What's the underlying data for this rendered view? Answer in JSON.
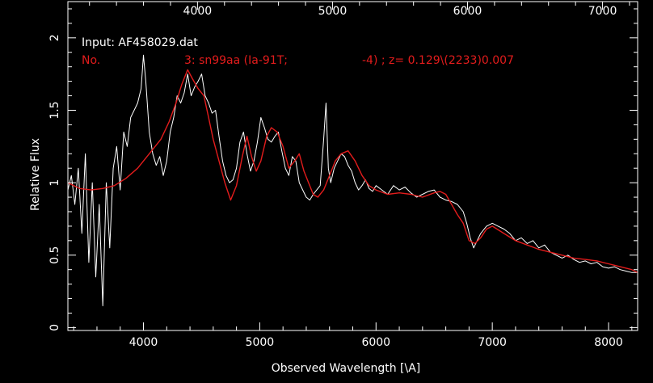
{
  "chart_data": {
    "type": "line",
    "title": "",
    "xlabel": "Observed Wavelength [\\A]",
    "ylabel": "Relative Flux",
    "xlim": [
      3350,
      8250
    ],
    "ylim": [
      -0.02,
      2.25
    ],
    "x_ticks": [
      4000,
      5000,
      6000,
      7000,
      8000
    ],
    "y_ticks": [
      0,
      0.5,
      1,
      1.5,
      2
    ],
    "y_tick_labels": [
      "0",
      "0.5",
      "1",
      "1.5",
      "2"
    ],
    "top_axis": {
      "xlim": [
        3040,
        7260
      ],
      "ticks": [
        4000,
        5000,
        6000,
        7000
      ]
    },
    "annotations": {
      "input": "Input: AF458029.dat",
      "no_label": "No.",
      "template": "3: sn99aa (Ia-91T;",
      "age_z": "-4) ; z= 0.129\\(2233)0.007"
    },
    "colors": {
      "background": "#000000",
      "data": "#ffffff",
      "template": "#e21c1c"
    },
    "series": [
      {
        "color": "#ffffff",
        "x": [
          3350,
          3380,
          3410,
          3440,
          3470,
          3500,
          3530,
          3560,
          3590,
          3620,
          3650,
          3680,
          3710,
          3740,
          3770,
          3800,
          3830,
          3860,
          3890,
          3920,
          3950,
          3980,
          4000,
          4020,
          4050,
          4080,
          4110,
          4140,
          4170,
          4200,
          4230,
          4260,
          4290,
          4320,
          4350,
          4380,
          4410,
          4440,
          4470,
          4500,
          4530,
          4560,
          4590,
          4620,
          4650,
          4680,
          4710,
          4740,
          4770,
          4800,
          4830,
          4860,
          4890,
          4920,
          4950,
          4980,
          5010,
          5040,
          5070,
          5100,
          5130,
          5160,
          5190,
          5220,
          5250,
          5280,
          5310,
          5340,
          5370,
          5400,
          5430,
          5460,
          5490,
          5520,
          5550,
          5570,
          5590,
          5610,
          5640,
          5670,
          5700,
          5730,
          5760,
          5790,
          5820,
          5850,
          5880,
          5910,
          5940,
          5970,
          6000,
          6050,
          6100,
          6150,
          6200,
          6250,
          6300,
          6350,
          6400,
          6450,
          6500,
          6550,
          6600,
          6650,
          6700,
          6750,
          6780,
          6810,
          6840,
          6870,
          6900,
          6950,
          7000,
          7050,
          7100,
          7150,
          7200,
          7250,
          7300,
          7350,
          7400,
          7450,
          7500,
          7550,
          7600,
          7650,
          7700,
          7750,
          7800,
          7850,
          7900,
          7950,
          8000,
          8050,
          8100,
          8150,
          8200,
          8250
        ],
        "values": [
          0.95,
          1.05,
          0.85,
          1.1,
          0.65,
          1.2,
          0.45,
          1.0,
          0.35,
          0.85,
          0.15,
          1.0,
          0.55,
          1.1,
          1.25,
          0.95,
          1.35,
          1.25,
          1.45,
          1.5,
          1.55,
          1.65,
          1.88,
          1.7,
          1.35,
          1.2,
          1.12,
          1.18,
          1.05,
          1.15,
          1.35,
          1.45,
          1.6,
          1.55,
          1.62,
          1.75,
          1.6,
          1.66,
          1.7,
          1.75,
          1.6,
          1.55,
          1.48,
          1.5,
          1.32,
          1.15,
          1.05,
          1.0,
          1.02,
          1.1,
          1.28,
          1.35,
          1.2,
          1.08,
          1.15,
          1.28,
          1.45,
          1.38,
          1.3,
          1.28,
          1.32,
          1.35,
          1.22,
          1.1,
          1.05,
          1.18,
          1.15,
          1.0,
          0.95,
          0.9,
          0.88,
          0.92,
          0.95,
          0.98,
          1.3,
          1.55,
          1.1,
          1.0,
          1.1,
          1.15,
          1.2,
          1.18,
          1.12,
          1.08,
          1.0,
          0.95,
          0.98,
          1.02,
          0.96,
          0.94,
          0.98,
          0.95,
          0.92,
          0.98,
          0.95,
          0.97,
          0.93,
          0.9,
          0.92,
          0.94,
          0.95,
          0.9,
          0.88,
          0.87,
          0.85,
          0.8,
          0.72,
          0.62,
          0.55,
          0.6,
          0.65,
          0.7,
          0.72,
          0.7,
          0.68,
          0.65,
          0.6,
          0.62,
          0.58,
          0.6,
          0.55,
          0.57,
          0.52,
          0.5,
          0.48,
          0.5,
          0.47,
          0.45,
          0.46,
          0.44,
          0.45,
          0.42,
          0.41,
          0.42,
          0.4,
          0.39,
          0.38,
          0.38
        ]
      },
      {
        "color": "#e21c1c",
        "x": [
          3350,
          3450,
          3550,
          3650,
          3750,
          3850,
          3950,
          4050,
          4150,
          4220,
          4280,
          4330,
          4380,
          4420,
          4470,
          4520,
          4560,
          4600,
          4650,
          4700,
          4750,
          4800,
          4850,
          4890,
          4930,
          4970,
          5010,
          5060,
          5100,
          5150,
          5200,
          5250,
          5300,
          5340,
          5380,
          5420,
          5460,
          5500,
          5550,
          5600,
          5650,
          5700,
          5760,
          5820,
          5880,
          5940,
          6000,
          6100,
          6200,
          6300,
          6400,
          6500,
          6550,
          6600,
          6650,
          6700,
          6750,
          6800,
          6850,
          6900,
          6950,
          7000,
          7100,
          7200,
          7300,
          7400,
          7500,
          7600,
          7700,
          7800,
          7900,
          8000,
          8100,
          8200,
          8250
        ],
        "values": [
          1.0,
          0.96,
          0.95,
          0.96,
          0.98,
          1.03,
          1.1,
          1.2,
          1.3,
          1.42,
          1.55,
          1.68,
          1.78,
          1.72,
          1.65,
          1.6,
          1.45,
          1.3,
          1.15,
          1.0,
          0.88,
          0.98,
          1.18,
          1.32,
          1.18,
          1.08,
          1.15,
          1.32,
          1.38,
          1.35,
          1.25,
          1.1,
          1.15,
          1.2,
          1.08,
          1.0,
          0.92,
          0.9,
          0.95,
          1.05,
          1.15,
          1.2,
          1.22,
          1.15,
          1.05,
          0.98,
          0.95,
          0.92,
          0.93,
          0.92,
          0.9,
          0.93,
          0.94,
          0.92,
          0.85,
          0.78,
          0.72,
          0.6,
          0.58,
          0.62,
          0.68,
          0.7,
          0.65,
          0.6,
          0.57,
          0.54,
          0.52,
          0.5,
          0.48,
          0.47,
          0.46,
          0.44,
          0.42,
          0.4,
          0.38
        ]
      }
    ]
  }
}
